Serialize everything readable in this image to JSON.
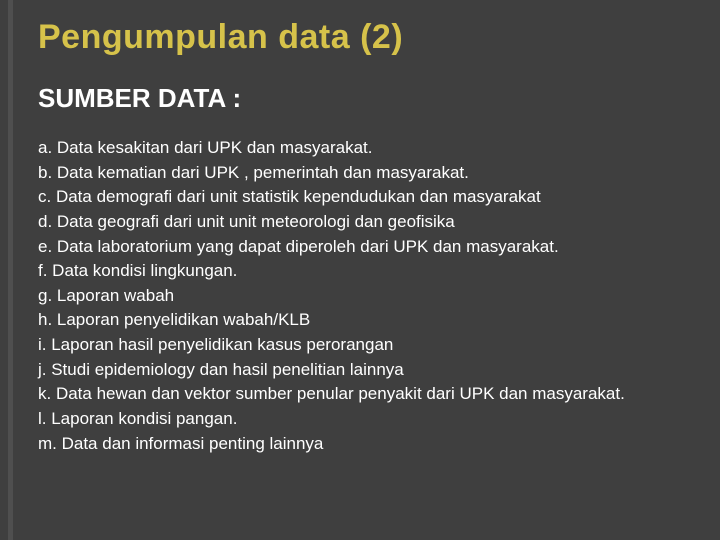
{
  "colors": {
    "background": "#3f3f3f",
    "title": "#d6c24a",
    "text": "#ffffff",
    "accent": "#4f4f4f"
  },
  "typography": {
    "title_fontsize": 34,
    "subtitle_fontsize": 26,
    "body_fontsize": 17,
    "font_family": "Arial"
  },
  "title": "Pengumpulan data (2)",
  "subtitle": "SUMBER DATA :",
  "items": [
    "a. Data kesakitan dari UPK  dan masyarakat.",
    "b. Data kematian dari UPK , pemerintah dan masyarakat.",
    "c. Data demografi dari unit statistik kependudukan dan masyarakat",
    "d. Data geografi dari unit unit meteorologi dan geofisika",
    "e. Data laboratorium yang dapat diperoleh dari UPK dan masyarakat.",
    "f. Data kondisi lingkungan.",
    "g. Laporan wabah",
    "h. Laporan penyelidikan wabah/KLB",
    "i. Laporan hasil penyelidikan kasus perorangan",
    "j. Studi epidemiology dan hasil penelitian lainnya",
    "k. Data hewan dan vektor sumber penular penyakit dari UPK dan masyarakat.",
    "l. Laporan kondisi pangan.",
    "m. Data dan informasi penting lainnya"
  ]
}
